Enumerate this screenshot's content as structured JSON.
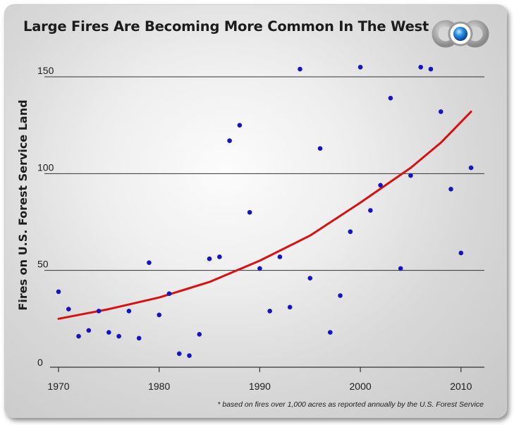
{
  "chart_data": {
    "type": "scatter",
    "title": "Large Fires Are Becoming More Common In The West",
    "ylabel": "Fires on U.S. Forest Service Land",
    "xlabel": "",
    "footnote": "* based on fires over 1,000 acres as reported annually by the U.S. Forest Service",
    "xlim": [
      1970,
      2012
    ],
    "ylim": [
      0,
      160
    ],
    "x_ticks": [
      "1970",
      "1980",
      "1990",
      "2000",
      "2010"
    ],
    "y_ticks": [
      "0",
      "50",
      "100",
      "150"
    ],
    "grid": "horizontal",
    "series": [
      {
        "marker": "dot",
        "points": [
          [
            1970,
            39
          ],
          [
            1971,
            30
          ],
          [
            1972,
            16
          ],
          [
            1973,
            19
          ],
          [
            1974,
            29
          ],
          [
            1975,
            18
          ],
          [
            1976,
            16
          ],
          [
            1977,
            29
          ],
          [
            1978,
            15
          ],
          [
            1979,
            54
          ],
          [
            1980,
            27
          ],
          [
            1981,
            38
          ],
          [
            1982,
            7
          ],
          [
            1983,
            6
          ],
          [
            1984,
            17
          ],
          [
            1985,
            56
          ],
          [
            1986,
            57
          ],
          [
            1987,
            117
          ],
          [
            1988,
            125
          ],
          [
            1989,
            80
          ],
          [
            1990,
            51
          ],
          [
            1991,
            29
          ],
          [
            1992,
            57
          ],
          [
            1993,
            31
          ],
          [
            1994,
            154
          ],
          [
            1995,
            46
          ],
          [
            1996,
            113
          ],
          [
            1997,
            18
          ],
          [
            1998,
            37
          ],
          [
            1999,
            70
          ],
          [
            2000,
            155
          ],
          [
            2001,
            81
          ],
          [
            2002,
            94
          ],
          [
            2003,
            139
          ],
          [
            2004,
            51
          ],
          [
            2005,
            99
          ],
          [
            2006,
            155
          ],
          [
            2007,
            154
          ],
          [
            2008,
            132
          ],
          [
            2009,
            92
          ],
          [
            2010,
            59
          ],
          [
            2011,
            103
          ]
        ]
      },
      {
        "type": "trend",
        "points": [
          [
            1970,
            25
          ],
          [
            1975,
            30
          ],
          [
            1980,
            36
          ],
          [
            1985,
            44
          ],
          [
            1990,
            55
          ],
          [
            1995,
            68
          ],
          [
            2000,
            85
          ],
          [
            2005,
            103
          ],
          [
            2008,
            116
          ],
          [
            2011,
            132
          ]
        ]
      }
    ]
  },
  "colors": {
    "points": "#1515c0",
    "trend": "#d81010",
    "grid": "#333333",
    "text": "#1c1c1c"
  },
  "logo": {
    "icon": "three-circles-logo"
  }
}
